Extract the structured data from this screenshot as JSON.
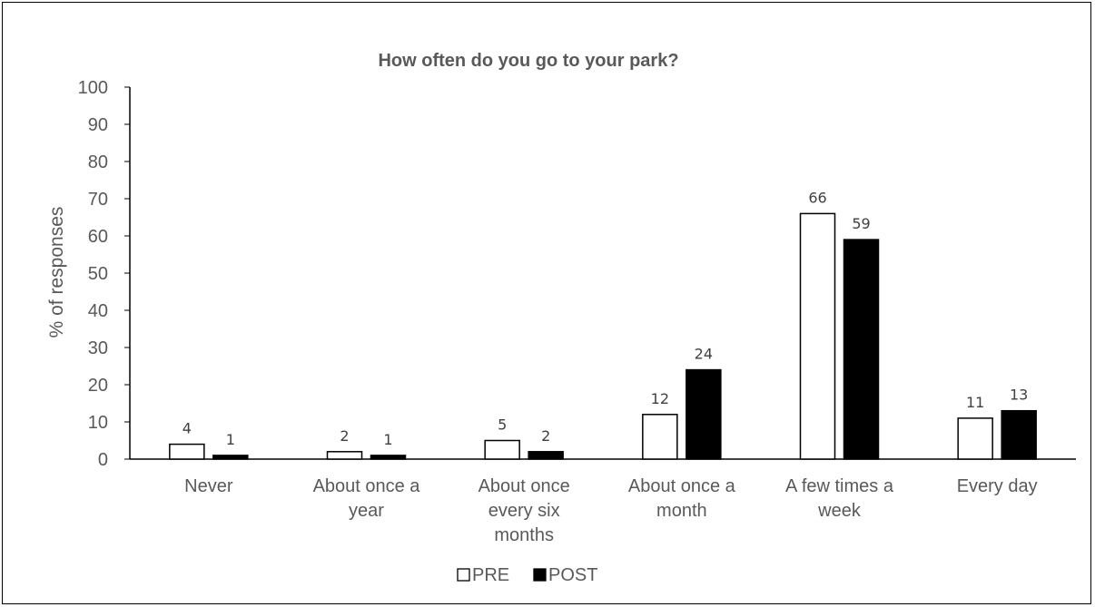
{
  "chart_data": {
    "type": "bar",
    "title": "How often do you go to your park?",
    "xlabel": "",
    "ylabel": "% of responses",
    "ylim": [
      0,
      100
    ],
    "yticks": [
      0,
      10,
      20,
      30,
      40,
      50,
      60,
      70,
      80,
      90,
      100
    ],
    "categories": [
      "Never",
      "About once a year",
      "About once every six months",
      "About once a month",
      "A few times a week",
      "Every day"
    ],
    "category_lines": [
      [
        "Never"
      ],
      [
        "About once a",
        "year"
      ],
      [
        "About once",
        "every six",
        "months"
      ],
      [
        "About once a",
        "month"
      ],
      [
        "A few times a",
        "week"
      ],
      [
        "Every day"
      ]
    ],
    "series": [
      {
        "name": "PRE",
        "values": [
          4,
          2,
          5,
          12,
          66,
          11
        ],
        "color": "#ffffff",
        "stroke": "#000000"
      },
      {
        "name": "POST",
        "values": [
          1,
          1,
          2,
          24,
          59,
          13
        ],
        "color": "#000000",
        "stroke": "#000000"
      }
    ],
    "data_labels": true,
    "grid": false,
    "legend_position": "bottom"
  }
}
